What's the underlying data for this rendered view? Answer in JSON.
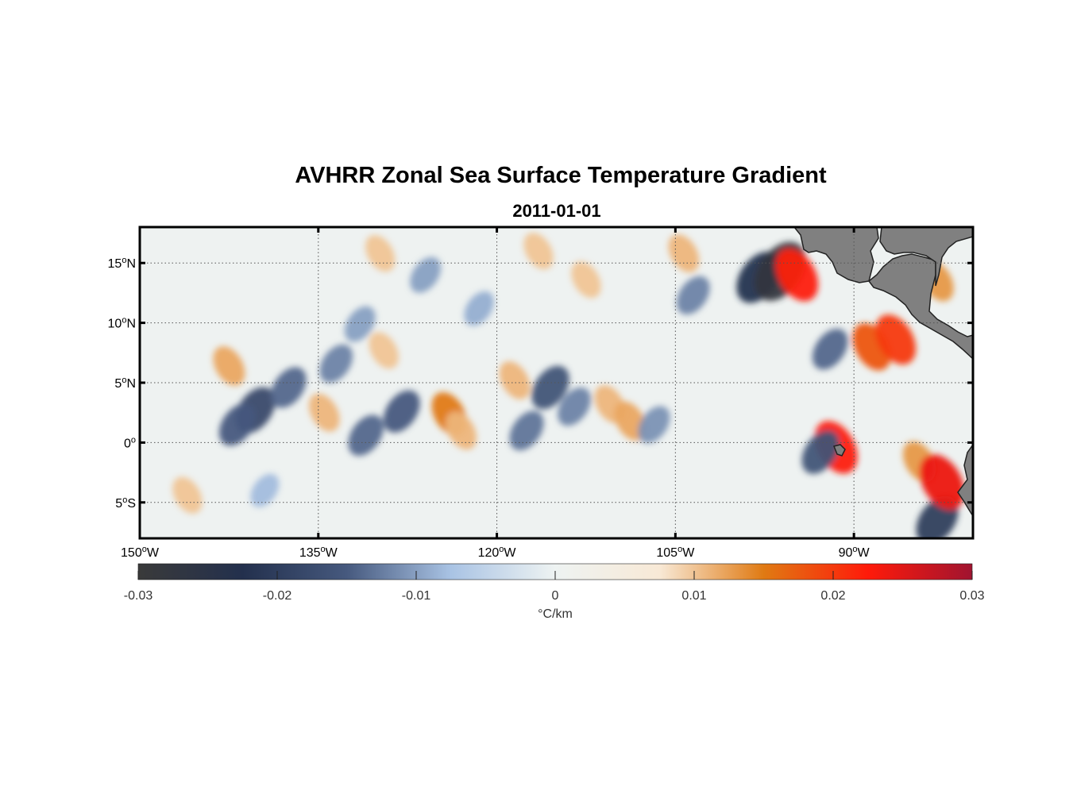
{
  "title": "AVHRR Zonal Sea Surface Temperature Gradient",
  "subtitle": "2011-01-01",
  "map": {
    "lon_range": [
      -150,
      -80
    ],
    "lat_range": [
      -8,
      18
    ],
    "lon_ticks": [
      {
        "value": -150,
        "label": "150°W"
      },
      {
        "value": -135,
        "label": "135°W"
      },
      {
        "value": -120,
        "label": "120°W"
      },
      {
        "value": -105,
        "label": "105°W"
      },
      {
        "value": -90,
        "label": "90°W"
      }
    ],
    "lat_ticks": [
      {
        "value": 15,
        "label": "15°N"
      },
      {
        "value": 10,
        "label": "10°N"
      },
      {
        "value": 5,
        "label": "5°N"
      },
      {
        "value": 0,
        "label": "0°"
      },
      {
        "value": -5,
        "label": "5°S"
      }
    ],
    "grid": true,
    "grid_style": "dotted",
    "land_color": "#808080",
    "colormap": [
      "#3a3a3a",
      "#23304d",
      "#46597e",
      "#a9c3e4",
      "#eef3f2",
      "#f8e9d6",
      "#e07a13",
      "#ff1a0a",
      "#a01430"
    ],
    "features": [
      {
        "lon": -142.5,
        "lat": 6.4,
        "value": 0.012
      },
      {
        "lon": -140.3,
        "lat": 2.7,
        "value": -0.018
      },
      {
        "lon": -141.8,
        "lat": 1.5,
        "value": -0.015
      },
      {
        "lon": -137.5,
        "lat": 4.6,
        "value": -0.014
      },
      {
        "lon": -134.5,
        "lat": 2.5,
        "value": 0.011
      },
      {
        "lon": -133.5,
        "lat": 6.6,
        "value": -0.012
      },
      {
        "lon": -131.5,
        "lat": 9.9,
        "value": -0.01
      },
      {
        "lon": -129.8,
        "lat": 15.8,
        "value": 0.01
      },
      {
        "lon": -129.5,
        "lat": 7.7,
        "value": 0.01
      },
      {
        "lon": -128.0,
        "lat": 2.6,
        "value": -0.015
      },
      {
        "lon": -131.0,
        "lat": 0.6,
        "value": -0.014
      },
      {
        "lon": -126.0,
        "lat": 14.0,
        "value": -0.01
      },
      {
        "lon": -124.0,
        "lat": 2.4,
        "value": 0.015
      },
      {
        "lon": -123.0,
        "lat": 1.0,
        "value": 0.011
      },
      {
        "lon": -121.5,
        "lat": 11.2,
        "value": -0.009
      },
      {
        "lon": -118.5,
        "lat": 5.2,
        "value": 0.011
      },
      {
        "lon": -116.5,
        "lat": 16.0,
        "value": 0.01
      },
      {
        "lon": -115.5,
        "lat": 4.6,
        "value": -0.016
      },
      {
        "lon": -117.5,
        "lat": 1.0,
        "value": -0.013
      },
      {
        "lon": -113.5,
        "lat": 3.0,
        "value": -0.012
      },
      {
        "lon": -112.5,
        "lat": 13.6,
        "value": 0.01
      },
      {
        "lon": -110.5,
        "lat": 3.2,
        "value": 0.011
      },
      {
        "lon": -108.8,
        "lat": 1.8,
        "value": 0.012
      },
      {
        "lon": -106.8,
        "lat": 1.5,
        "value": -0.011
      },
      {
        "lon": -104.3,
        "lat": 15.8,
        "value": 0.011
      },
      {
        "lon": -103.5,
        "lat": 12.3,
        "value": -0.012
      },
      {
        "lon": -98.0,
        "lat": 13.8,
        "value": -0.022
      },
      {
        "lon": -96.2,
        "lat": 14.3,
        "value": -0.028
      },
      {
        "lon": -94.8,
        "lat": 14.0,
        "value": 0.022
      },
      {
        "lon": -92.0,
        "lat": 7.8,
        "value": -0.014
      },
      {
        "lon": -88.5,
        "lat": 8.0,
        "value": 0.018
      },
      {
        "lon": -86.5,
        "lat": 8.6,
        "value": 0.02
      },
      {
        "lon": -91.5,
        "lat": -0.4,
        "value": 0.022
      },
      {
        "lon": -92.8,
        "lat": -0.8,
        "value": -0.016
      },
      {
        "lon": -84.5,
        "lat": -1.6,
        "value": 0.013
      },
      {
        "lon": -83.0,
        "lat": -6.5,
        "value": -0.02
      },
      {
        "lon": -82.6,
        "lat": -3.3,
        "value": 0.024
      },
      {
        "lon": -83.0,
        "lat": 13.5,
        "value": 0.013
      },
      {
        "lon": -146.0,
        "lat": -4.4,
        "value": 0.01
      },
      {
        "lon": -139.5,
        "lat": -4.0,
        "value": -0.008
      }
    ]
  },
  "colorbar": {
    "ticks": [
      {
        "value": -0.03,
        "label": "-0.03"
      },
      {
        "value": -0.02,
        "label": "-0.02"
      },
      {
        "value": -0.01,
        "label": "-0.01"
      },
      {
        "value": 0,
        "label": "0"
      },
      {
        "value": 0.01,
        "label": "0.01"
      },
      {
        "value": 0.02,
        "label": "0.02"
      },
      {
        "value": 0.03,
        "label": "0.03"
      }
    ],
    "label": "°C/km"
  }
}
